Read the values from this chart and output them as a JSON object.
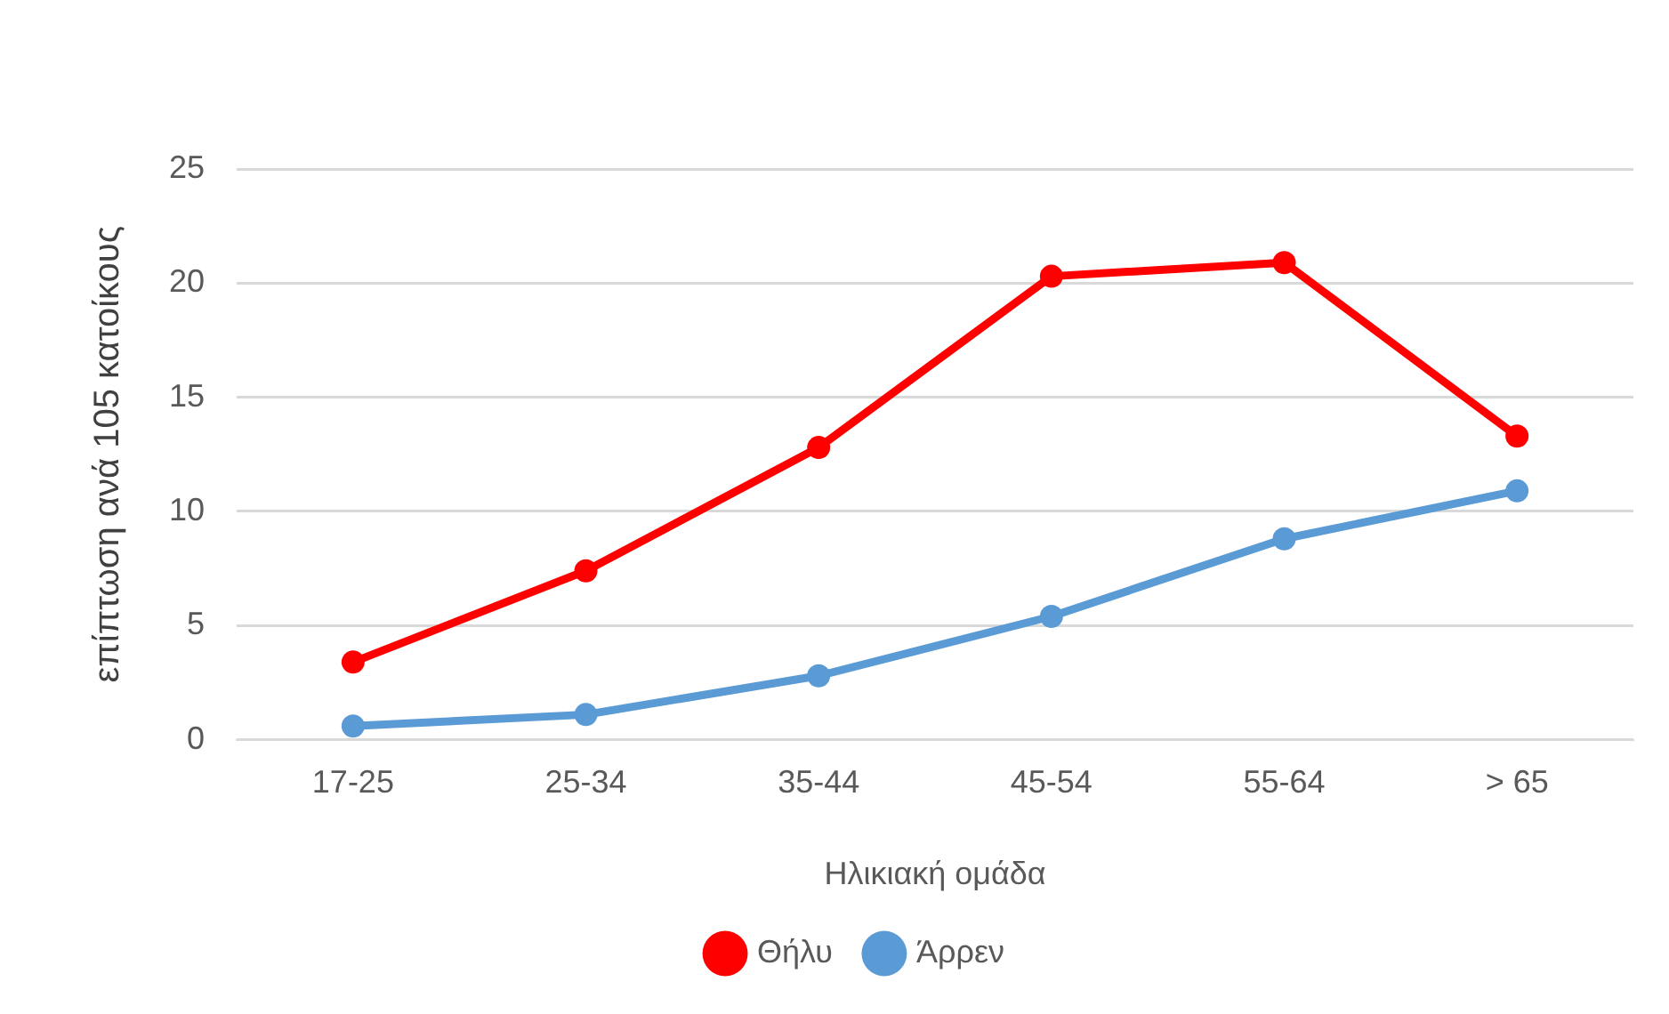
{
  "chart_data": {
    "type": "line",
    "xlabel": "Ηλικιακή ομάδα",
    "ylabel": "επίπτωση ανά 105 κατοίκους",
    "categories": [
      "17-25",
      "25-34",
      "35-44",
      "45-54",
      "55-64",
      "> 65"
    ],
    "series": [
      {
        "name": "Θήλυ",
        "color": "#ff0000",
        "values": [
          3.4,
          7.4,
          12.8,
          20.3,
          20.9,
          13.3
        ]
      },
      {
        "name": "Άρρεν",
        "color": "#5b9bd5",
        "values": [
          0.6,
          1.1,
          2.8,
          5.4,
          8.8,
          10.9
        ]
      }
    ],
    "ylim": [
      0,
      25
    ],
    "yticks": [
      0,
      5,
      10,
      15,
      20,
      25
    ],
    "grid": "y",
    "legend": "bottom",
    "marker": "circle",
    "line_style": "solid"
  }
}
